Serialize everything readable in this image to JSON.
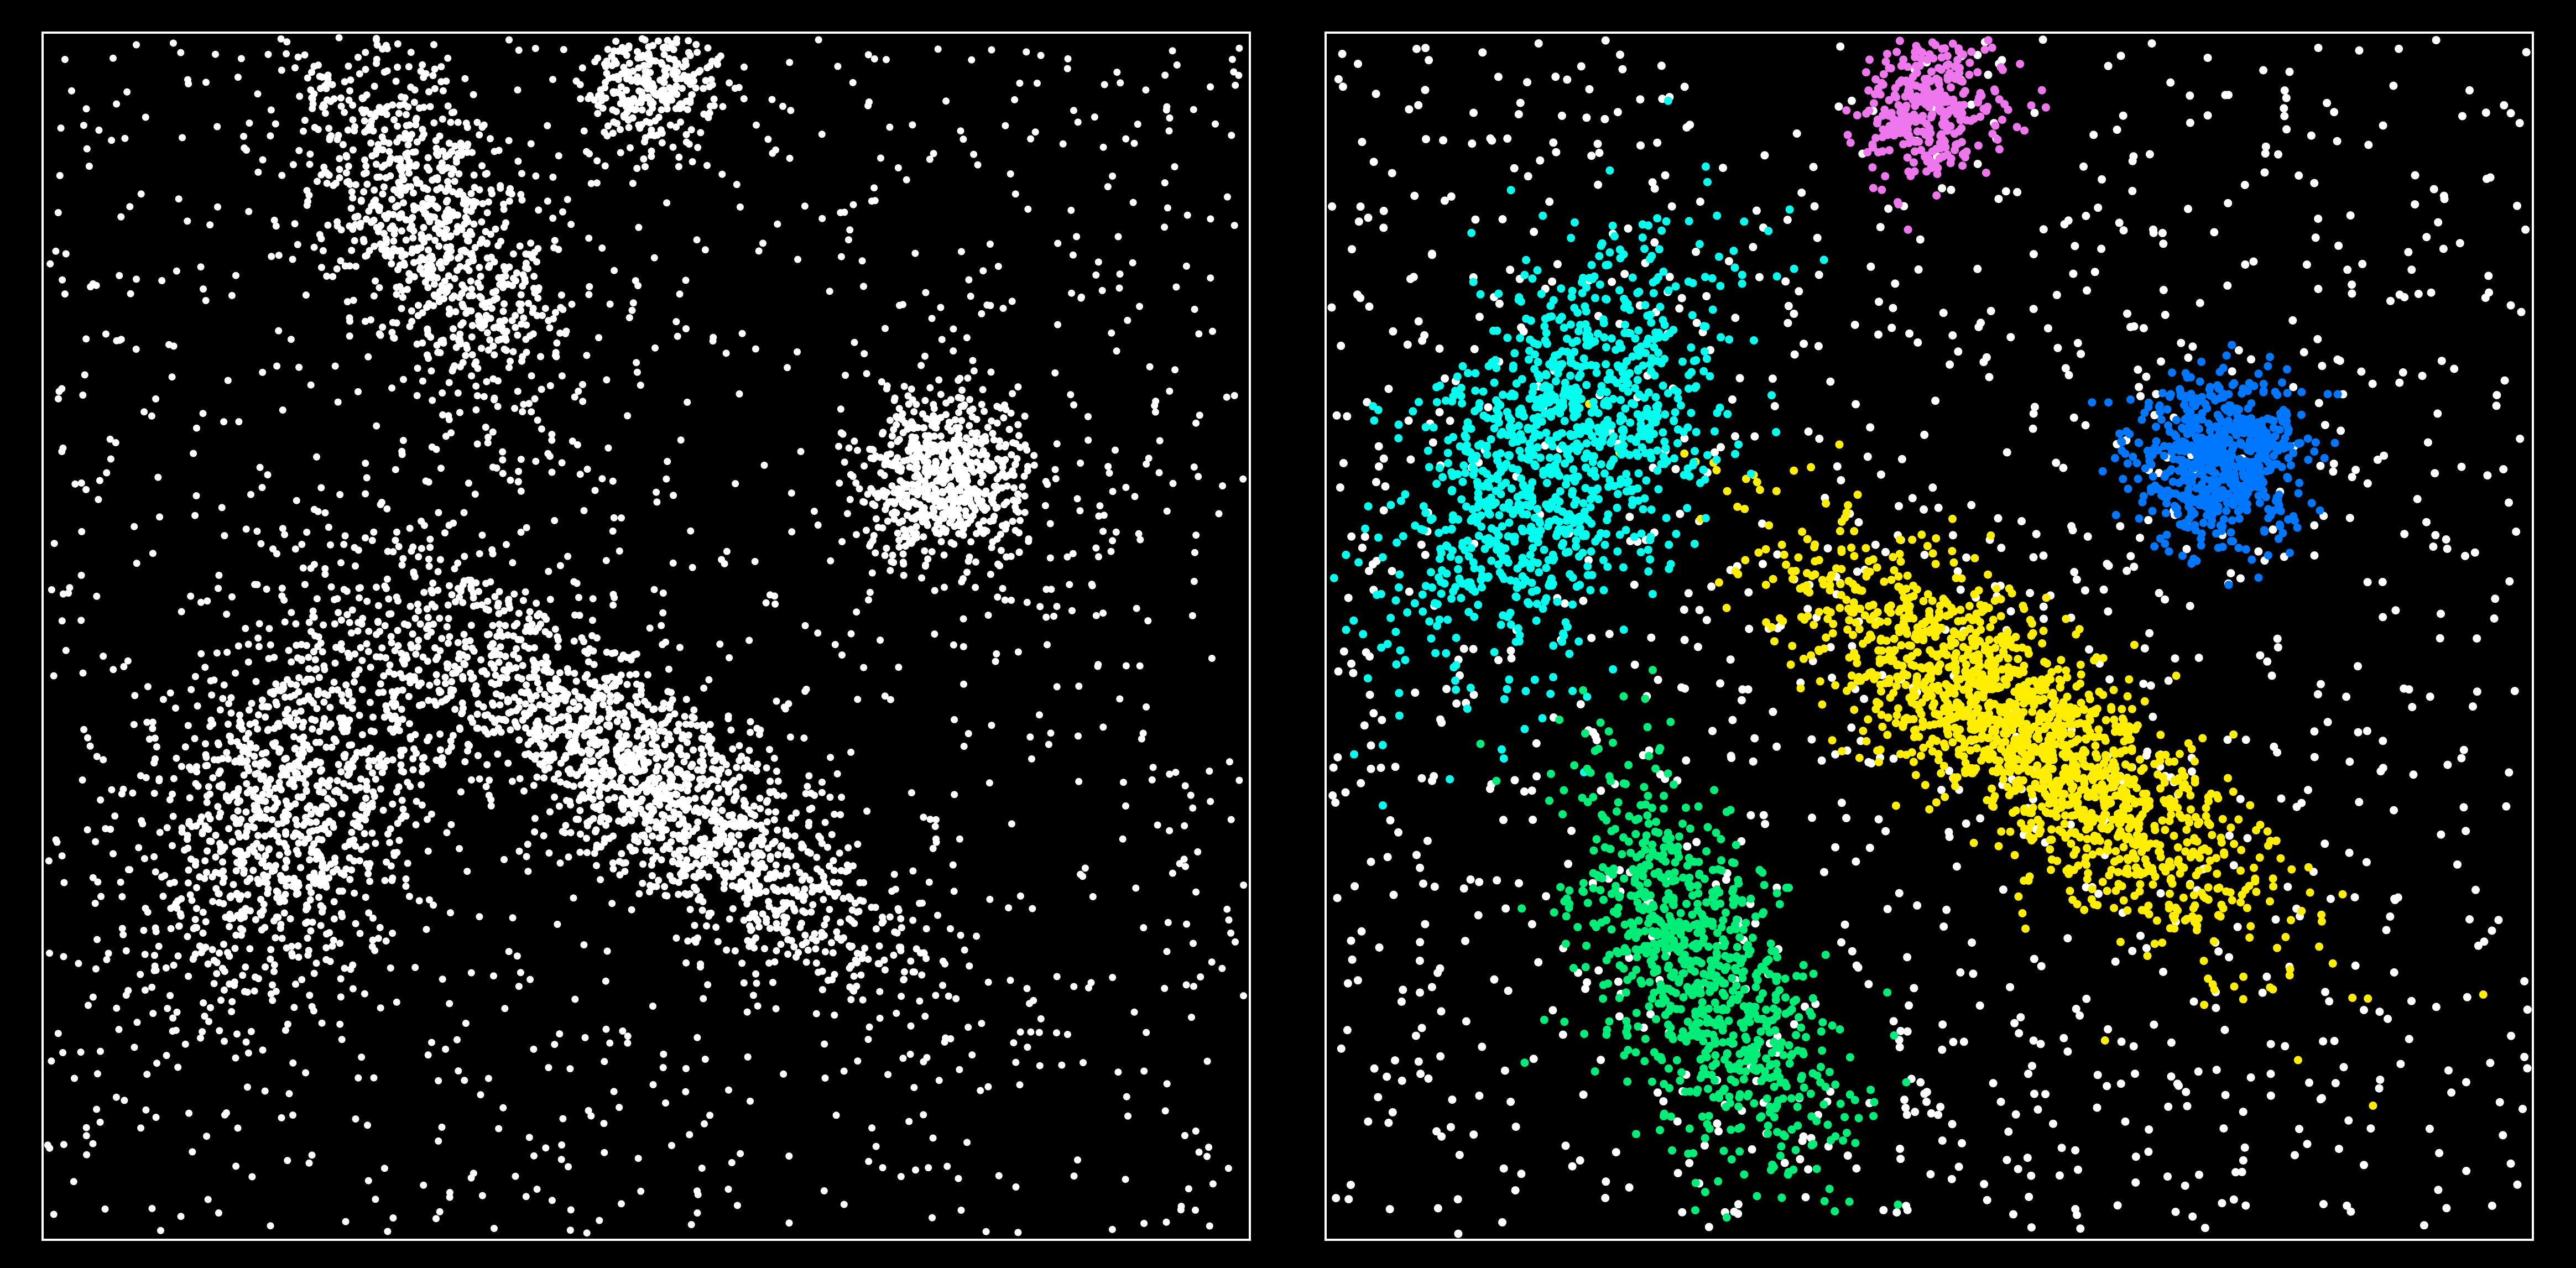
{
  "figure": {
    "background": "#000000",
    "frame_color": "#ffffff",
    "noise_color": "#ffffff"
  },
  "chart_data": [
    {
      "type": "scatter",
      "panel": "left",
      "title": "",
      "xlabel": "",
      "ylabel": "",
      "xlim": [
        0,
        1
      ],
      "ylim": [
        0,
        1
      ],
      "grid": false,
      "axes_ticks": false,
      "legend": "none",
      "colored": false,
      "noise": {
        "points": 1300,
        "color": "#ffffff"
      },
      "clusters": [
        {
          "center": [
            0.5,
            0.38
          ],
          "sd_major": 0.13,
          "sd_minor": 0.038,
          "angle_deg": -38,
          "points": 1600,
          "color": "#ffffff"
        },
        {
          "center": [
            0.21,
            0.36
          ],
          "sd_major": 0.1,
          "sd_minor": 0.055,
          "angle_deg": 60,
          "points": 1100,
          "color": "#ffffff"
        },
        {
          "center": [
            0.32,
            0.84
          ],
          "sd_major": 0.09,
          "sd_minor": 0.04,
          "angle_deg": -62,
          "points": 850,
          "color": "#ffffff"
        },
        {
          "center": [
            0.745,
            0.63
          ],
          "sd_major": 0.035,
          "sd_minor": 0.035,
          "angle_deg": 0,
          "points": 650,
          "color": "#ffffff"
        },
        {
          "center": [
            0.505,
            0.955
          ],
          "sd_major": 0.028,
          "sd_minor": 0.028,
          "angle_deg": 0,
          "points": 320,
          "color": "#ffffff"
        }
      ]
    },
    {
      "type": "scatter",
      "panel": "right",
      "title": "",
      "xlabel": "",
      "ylabel": "",
      "xlim": [
        0,
        1
      ],
      "ylim": [
        0,
        1
      ],
      "grid": false,
      "axes_ticks": false,
      "legend": "none",
      "colored": true,
      "noise": {
        "points": 1300,
        "color": "#ffffff"
      },
      "clusters": [
        {
          "center": [
            0.58,
            0.42
          ],
          "sd_major": 0.12,
          "sd_minor": 0.038,
          "angle_deg": -40,
          "points": 1600,
          "color": "#ffee00"
        },
        {
          "center": [
            0.19,
            0.65
          ],
          "sd_major": 0.1,
          "sd_minor": 0.055,
          "angle_deg": 58,
          "points": 1100,
          "color": "#00ffee"
        },
        {
          "center": [
            0.31,
            0.22
          ],
          "sd_major": 0.09,
          "sd_minor": 0.04,
          "angle_deg": -62,
          "points": 850,
          "color": "#00ee77"
        },
        {
          "center": [
            0.74,
            0.65
          ],
          "sd_major": 0.035,
          "sd_minor": 0.035,
          "angle_deg": 0,
          "points": 650,
          "color": "#0077ff"
        },
        {
          "center": [
            0.5,
            0.935
          ],
          "sd_major": 0.03,
          "sd_minor": 0.03,
          "angle_deg": 0,
          "points": 320,
          "color": "#ee77ee"
        }
      ]
    }
  ]
}
